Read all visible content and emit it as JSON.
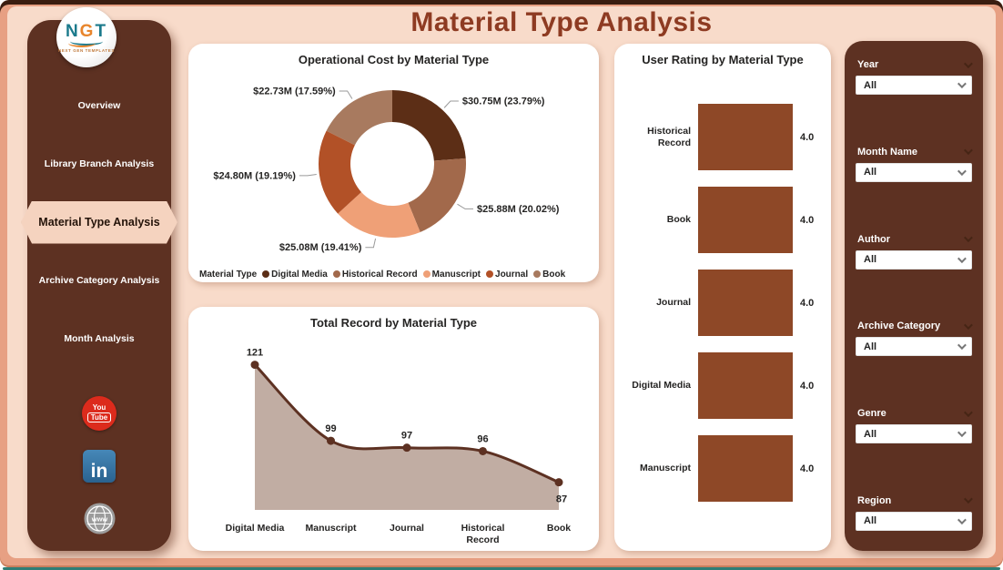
{
  "page": {
    "title": "Material Type Analysis"
  },
  "logo": {
    "letters": [
      "N",
      "G",
      "T"
    ],
    "tagline": "NEXT GEN TEMPLATES"
  },
  "sidebar": {
    "items": [
      {
        "label": "Overview",
        "active": false
      },
      {
        "label": "Library Branch Analysis",
        "active": false
      },
      {
        "label": "Material Type Analysis",
        "active": true
      },
      {
        "label": "Archive Category Analysis",
        "active": false
      },
      {
        "label": "Month Analysis",
        "active": false
      }
    ],
    "social": {
      "youtube": {
        "line1": "You",
        "line2": "Tube"
      },
      "linkedin": "in",
      "website": "www"
    }
  },
  "filters": [
    {
      "label": "Year",
      "value": "All"
    },
    {
      "label": "Month Name",
      "value": "All"
    },
    {
      "label": "Author",
      "value": "All"
    },
    {
      "label": "Archive Category",
      "value": "All"
    },
    {
      "label": "Genre",
      "value": "All"
    },
    {
      "label": "Region",
      "value": "All"
    }
  ],
  "chart_data": [
    {
      "type": "pie",
      "donut": true,
      "title": "Operational Cost by Material Type",
      "legend_title": "Material Type",
      "legend_position": "bottom",
      "slices": [
        {
          "label": "Digital Media",
          "value": 30.75,
          "pct": 23.79,
          "value_label": "$30.75M (23.79%)",
          "color": "#5C2E16"
        },
        {
          "label": "Historical Record",
          "value": 25.88,
          "pct": 20.02,
          "value_label": "$25.88M (20.02%)",
          "color": "#A2694B"
        },
        {
          "label": "Manuscript",
          "value": 25.08,
          "pct": 19.41,
          "value_label": "$25.08M (19.41%)",
          "color": "#EFA077"
        },
        {
          "label": "Journal",
          "value": 24.8,
          "pct": 19.19,
          "value_label": "$24.80M (19.19%)",
          "color": "#B25127"
        },
        {
          "label": "Book",
          "value": 22.73,
          "pct": 17.59,
          "value_label": "$22.73M (17.59%)",
          "color": "#A87A5F"
        }
      ]
    },
    {
      "type": "area",
      "title": "Total Record by Material Type",
      "categories": [
        "Digital Media",
        "Manuscript",
        "Journal",
        "Historical Record",
        "Book"
      ],
      "values": [
        121,
        99,
        97,
        96,
        87
      ],
      "ylim": [
        79,
        128
      ],
      "line_color": "#5D3122",
      "fill_color": "#BAA499",
      "point_color": "#5D3122"
    },
    {
      "type": "bar",
      "orientation": "horizontal",
      "title": "User Rating by Material Type",
      "categories": [
        "Historical Record",
        "Book",
        "Journal",
        "Digital Media",
        "Manuscript"
      ],
      "values": [
        4.0,
        4.0,
        4.0,
        4.0,
        4.0
      ],
      "value_labels": [
        "4.0",
        "4.0",
        "4.0",
        "4.0",
        "4.0"
      ],
      "xlim": [
        0,
        4
      ],
      "bar_color": "#8E4827"
    }
  ]
}
